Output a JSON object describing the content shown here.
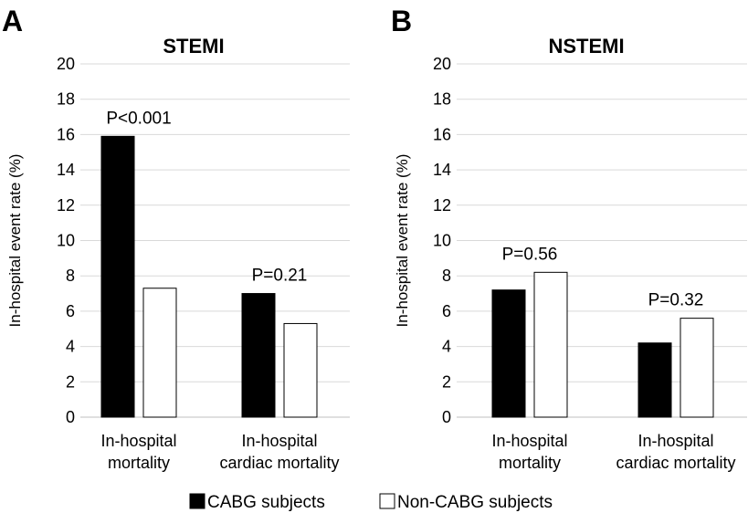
{
  "legend": [
    {
      "name": "CABG subjects",
      "color": "#000000"
    },
    {
      "name": "Non-CABG subjects",
      "color": "#ffffff"
    }
  ],
  "chart_data": [
    {
      "type": "bar",
      "panel": "A",
      "title": "STEMI",
      "ylabel": "In-hospital event rate (%)",
      "ylim": [
        0,
        20
      ],
      "yticks": [
        "0",
        "2",
        "4",
        "6",
        "8",
        "10",
        "12",
        "14",
        "16",
        "18",
        "20"
      ],
      "categories": [
        {
          "lines": [
            "In-hospital",
            "mortality"
          ]
        },
        {
          "lines": [
            "In-hospital",
            "cardiac mortality"
          ]
        }
      ],
      "series": [
        {
          "name": "CABG subjects",
          "values": [
            15.9,
            7.0
          ]
        },
        {
          "name": "Non-CABG subjects",
          "values": [
            7.3,
            5.3
          ]
        }
      ],
      "annotations": [
        "P<0.001",
        "P=0.21"
      ]
    },
    {
      "type": "bar",
      "panel": "B",
      "title": "NSTEMI",
      "ylabel": "In-hospital event rate (%)",
      "ylim": [
        0,
        20
      ],
      "yticks": [
        "0",
        "2",
        "4",
        "6",
        "8",
        "10",
        "12",
        "14",
        "16",
        "18",
        "20"
      ],
      "categories": [
        {
          "lines": [
            "In-hospital",
            "mortality"
          ]
        },
        {
          "lines": [
            "In-hospital",
            "cardiac mortality"
          ]
        }
      ],
      "series": [
        {
          "name": "CABG subjects",
          "values": [
            7.2,
            4.2
          ]
        },
        {
          "name": "Non-CABG subjects",
          "values": [
            8.2,
            5.6
          ]
        }
      ],
      "annotations": [
        "P=0.56",
        "P=0.32"
      ]
    }
  ]
}
